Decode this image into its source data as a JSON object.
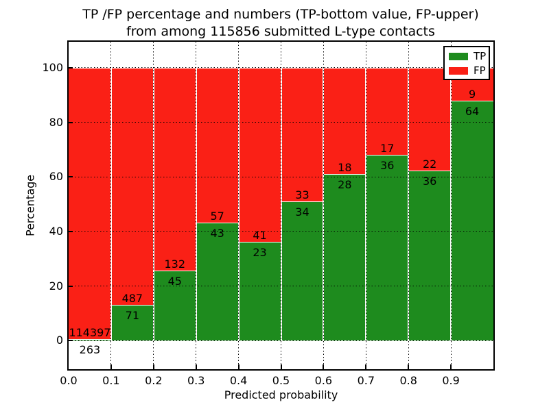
{
  "chart_data": {
    "type": "bar",
    "stacked": true,
    "normalized_percent": true,
    "title": "TP /FP percentage and numbers (TP-bottom value, FP-upper)\nfrom among 115856 submitted L-type contacts",
    "title_lines": [
      "TP /FP percentage and numbers (TP-bottom value, FP-upper)",
      "from among 115856 submitted L-type contacts"
    ],
    "xlabel": "Predicted probability",
    "ylabel": "Percentage",
    "total_contacts": 115856,
    "bins": [
      "0.0-0.1",
      "0.1-0.2",
      "0.2-0.3",
      "0.3-0.4",
      "0.4-0.5",
      "0.5-0.6",
      "0.6-0.7",
      "0.7-0.8",
      "0.8-0.9",
      "0.9-1.0"
    ],
    "series": [
      {
        "name": "TP",
        "color": "#1e8b1e",
        "values": [
          263,
          71,
          45,
          43,
          23,
          34,
          28,
          36,
          36,
          64
        ]
      },
      {
        "name": "FP",
        "color": "#fa2016",
        "values": [
          114397,
          487,
          132,
          57,
          41,
          33,
          18,
          17,
          22,
          9
        ]
      }
    ],
    "tp_percent_by_bin": [
      0.2,
      12.7,
      25.4,
      43.0,
      35.9,
      50.7,
      60.9,
      67.9,
      62.1,
      87.7
    ],
    "xticks": [
      "0.0",
      "0.1",
      "0.2",
      "0.3",
      "0.4",
      "0.5",
      "0.6",
      "0.7",
      "0.8",
      "0.9"
    ],
    "yticks": [
      "0",
      "20",
      "40",
      "60",
      "80",
      "100"
    ],
    "ytick_values": [
      0,
      20,
      40,
      60,
      80,
      100
    ],
    "xlim": [
      0.0,
      1.0
    ],
    "ylim": [
      -10.5,
      109.5
    ],
    "grid": "dotted black",
    "legend": {
      "position": "upper right",
      "entries": [
        {
          "label": "TP",
          "color": "#1e8b1e"
        },
        {
          "label": "FP",
          "color": "#fa2016"
        }
      ]
    }
  }
}
